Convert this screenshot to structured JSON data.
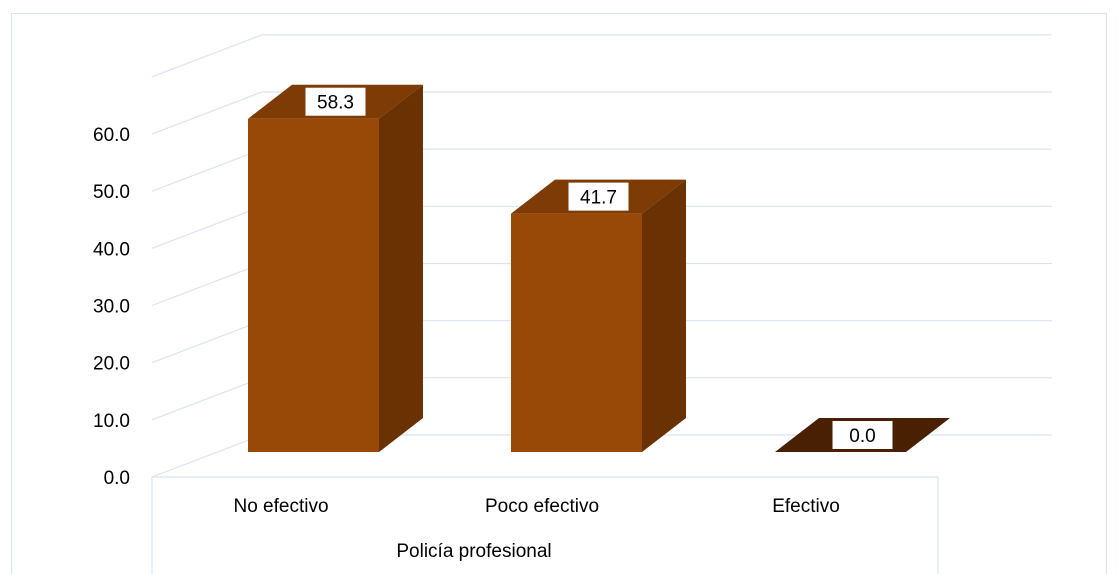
{
  "chart_data": {
    "type": "bar",
    "categories": [
      "No efectivo",
      "Poco efectivo",
      "Efectivo"
    ],
    "values": [
      58.3,
      41.7,
      0.0
    ],
    "data_labels": [
      "58.3",
      "41.7",
      "0.0"
    ],
    "xlabel": "Policía profesional",
    "ylabel": "",
    "ylim": [
      0,
      60
    ],
    "yticks": [
      "0.0",
      "10.0",
      "20.0",
      "30.0",
      "40.0",
      "50.0",
      "60.0"
    ],
    "grid": true,
    "legend": "none",
    "colors": {
      "bar_front": "#984807",
      "bar_side": "#6a3203",
      "bar_top": "#7e3b05",
      "grid": "#d9e4f0",
      "label_box": "#ffffff"
    }
  }
}
